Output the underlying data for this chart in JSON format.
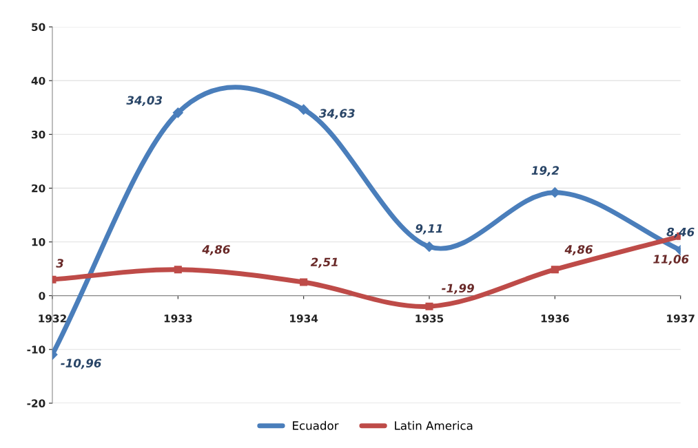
{
  "chart_data": {
    "type": "line",
    "categories": [
      "1932",
      "1933",
      "1934",
      "1935",
      "1936",
      "1937"
    ],
    "series": [
      {
        "name": "Ecuador",
        "color": "#4a7ebb",
        "marker": "diamond",
        "values": [
          -10.96,
          34.03,
          34.63,
          9.11,
          19.2,
          8.46
        ],
        "value_labels": [
          "-10,96",
          "34,03",
          "34,63",
          "9,11",
          "19,2",
          "8,46"
        ]
      },
      {
        "name": "Latin America",
        "color": "#be4b48",
        "marker": "square",
        "values": [
          3,
          4.86,
          2.51,
          -1.99,
          4.86,
          11.06
        ],
        "value_labels": [
          "3",
          "4,86",
          "2,51",
          "-1,99",
          "4,86",
          "11,06"
        ]
      }
    ],
    "ylim": [
      -20,
      50
    ],
    "yticks": [
      -20,
      -10,
      0,
      10,
      20,
      30,
      40,
      50
    ],
    "grid": "y",
    "legend": "bottom",
    "line_style": "solid"
  }
}
